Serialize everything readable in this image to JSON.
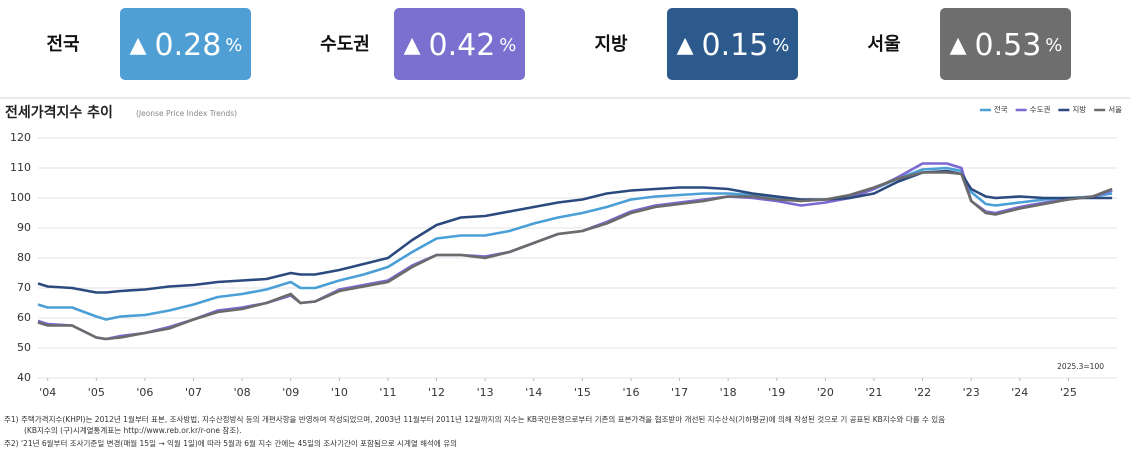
{
  "summary": [
    {
      "name": "전국",
      "arrow": "▲",
      "value": "0.28",
      "unit": "%",
      "color": "#4f9fd5"
    },
    {
      "name": "수도권",
      "arrow": "▲",
      "value": "0.42",
      "unit": "%",
      "color": "#7b6fd0"
    },
    {
      "name": "지방",
      "arrow": "▲",
      "value": "0.15",
      "unit": "%",
      "color": "#2d5a8c"
    },
    {
      "name": "서울",
      "arrow": "▲",
      "value": "0.53",
      "unit": "%",
      "color": "#6e6e6e"
    }
  ],
  "chart_data": {
    "type": "line",
    "title": "전세가격지수 추이",
    "subtitle": "(Jeonse Price Index Trends)",
    "annotation": "2025.3=100",
    "grid": true,
    "legend": "top-right",
    "xlim": [
      2003.8,
      2026.0
    ],
    "xticks": [
      {
        "value": 2004,
        "label": "'04"
      },
      {
        "value": 2005,
        "label": "'05"
      },
      {
        "value": 2006,
        "label": "'06"
      },
      {
        "value": 2007,
        "label": "'07"
      },
      {
        "value": 2008,
        "label": "'08"
      },
      {
        "value": 2009,
        "label": "'09"
      },
      {
        "value": 2010,
        "label": "'10"
      },
      {
        "value": 2011,
        "label": "'11"
      },
      {
        "value": 2012,
        "label": "'12"
      },
      {
        "value": 2013,
        "label": "'13"
      },
      {
        "value": 2014,
        "label": "'14"
      },
      {
        "value": 2015,
        "label": "'15"
      },
      {
        "value": 2016,
        "label": "'16"
      },
      {
        "value": 2017,
        "label": "'17"
      },
      {
        "value": 2018,
        "label": "'18"
      },
      {
        "value": 2019,
        "label": "'19"
      },
      {
        "value": 2020,
        "label": "'20"
      },
      {
        "value": 2021,
        "label": "'21"
      },
      {
        "value": 2022,
        "label": "'22"
      },
      {
        "value": 2023,
        "label": "'23"
      },
      {
        "value": 2024,
        "label": "'24"
      },
      {
        "value": 2025,
        "label": "'25"
      }
    ],
    "ylim": [
      40,
      120
    ],
    "yticks": [
      40,
      50,
      60,
      70,
      80,
      90,
      100,
      110,
      120
    ],
    "x": [
      2003.8,
      2004.0,
      2004.5,
      2005.0,
      2005.2,
      2005.5,
      2006.0,
      2006.5,
      2007.0,
      2007.5,
      2008.0,
      2008.5,
      2009.0,
      2009.2,
      2009.5,
      2010.0,
      2010.5,
      2011.0,
      2011.5,
      2012.0,
      2012.5,
      2013.0,
      2013.5,
      2014.0,
      2014.5,
      2015.0,
      2015.5,
      2016.0,
      2016.5,
      2017.0,
      2017.5,
      2018.0,
      2018.5,
      2019.0,
      2019.5,
      2020.0,
      2020.5,
      2021.0,
      2021.5,
      2022.0,
      2022.5,
      2022.8,
      2023.0,
      2023.3,
      2023.5,
      2024.0,
      2024.5,
      2025.0,
      2025.5,
      2025.9
    ],
    "series": [
      {
        "name": "전국",
        "color": "#4a9fd6",
        "values": [
          64.5,
          63.5,
          63.5,
          60.5,
          59.5,
          60.5,
          61,
          62.5,
          64.5,
          67,
          68,
          69.5,
          72,
          70,
          70,
          72.5,
          74.5,
          77,
          82,
          86.5,
          87.5,
          87.5,
          89,
          91.5,
          93.5,
          95,
          97,
          99.5,
          100.5,
          101,
          101.5,
          101.5,
          101,
          100,
          99,
          99.5,
          100.5,
          103,
          106.5,
          109.5,
          110,
          109,
          102,
          98,
          97.5,
          98.5,
          99.5,
          100,
          100.5,
          101.5
        ]
      },
      {
        "name": "수도권",
        "color": "#7b68d0",
        "values": [
          59,
          58,
          57.5,
          53.5,
          53,
          54,
          55,
          57,
          59.5,
          62.5,
          63.5,
          65,
          67.5,
          65,
          65.5,
          69.5,
          71,
          72.5,
          77.5,
          81,
          81,
          80.5,
          82,
          85,
          88,
          89,
          92,
          95.5,
          97.5,
          98.5,
          99.5,
          100.5,
          100,
          99,
          97.5,
          98.5,
          100,
          103,
          107,
          111.5,
          111.5,
          110,
          99,
          95.5,
          95,
          97,
          98.5,
          99.5,
          100.5,
          102.5
        ]
      },
      {
        "name": "지방",
        "color": "#2c4a7e",
        "values": [
          71.5,
          70.5,
          70,
          68.5,
          68.5,
          69,
          69.5,
          70.5,
          71,
          72,
          72.5,
          73,
          75,
          74.5,
          74.5,
          76,
          78,
          80,
          86,
          91,
          93.5,
          94,
          95.5,
          97,
          98.5,
          99.5,
          101.5,
          102.5,
          103,
          103.5,
          103.5,
          103,
          101.5,
          100.5,
          99.5,
          99.5,
          100,
          101.5,
          105.5,
          108.5,
          109,
          108,
          103,
          100.5,
          100,
          100.5,
          100,
          100,
          100,
          100
        ]
      },
      {
        "name": "서울",
        "color": "#6b6b6b",
        "values": [
          58.5,
          57.5,
          57.5,
          53.5,
          53,
          53.5,
          55,
          56.5,
          59.5,
          62,
          63,
          65,
          68,
          65,
          65.5,
          69,
          70.5,
          72,
          77,
          81,
          81,
          80,
          82,
          85,
          88,
          89,
          91.5,
          95,
          97,
          98,
          99,
          100.5,
          100.5,
          99.5,
          99,
          99.5,
          101,
          103.5,
          106.5,
          108.5,
          108.5,
          108,
          99,
          95,
          94.5,
          96.5,
          98,
          99.5,
          100.5,
          103
        ]
      }
    ]
  },
  "notes": [
    "주1) 주택가격지수(KHPI)는 2012년 1월부터 표본, 조사방법, 지수산정방식 등의 개편사항을 반영하여 작성되었으며, 2003년 11월부터 2011년 12월까지의 지수는 KB국민은행으로부터 기존의 표본가격을 협조받아 개선된 지수산식(기하평균)에 의해 작성된 것으로 기 공표된 KB지수와 다를 수 있음",
    "(KB지수의 (구)시계열통계표는 http://www.reb.or.kr/r-one 참조).",
    "주2) '21년 6월부터 조사기준일 변경(매월 15일 → 익월 1일)에 따라 5월과 6월 지수 간에는 45일의 조사기간이 포함됨으로 시계열 해석에 유의"
  ]
}
